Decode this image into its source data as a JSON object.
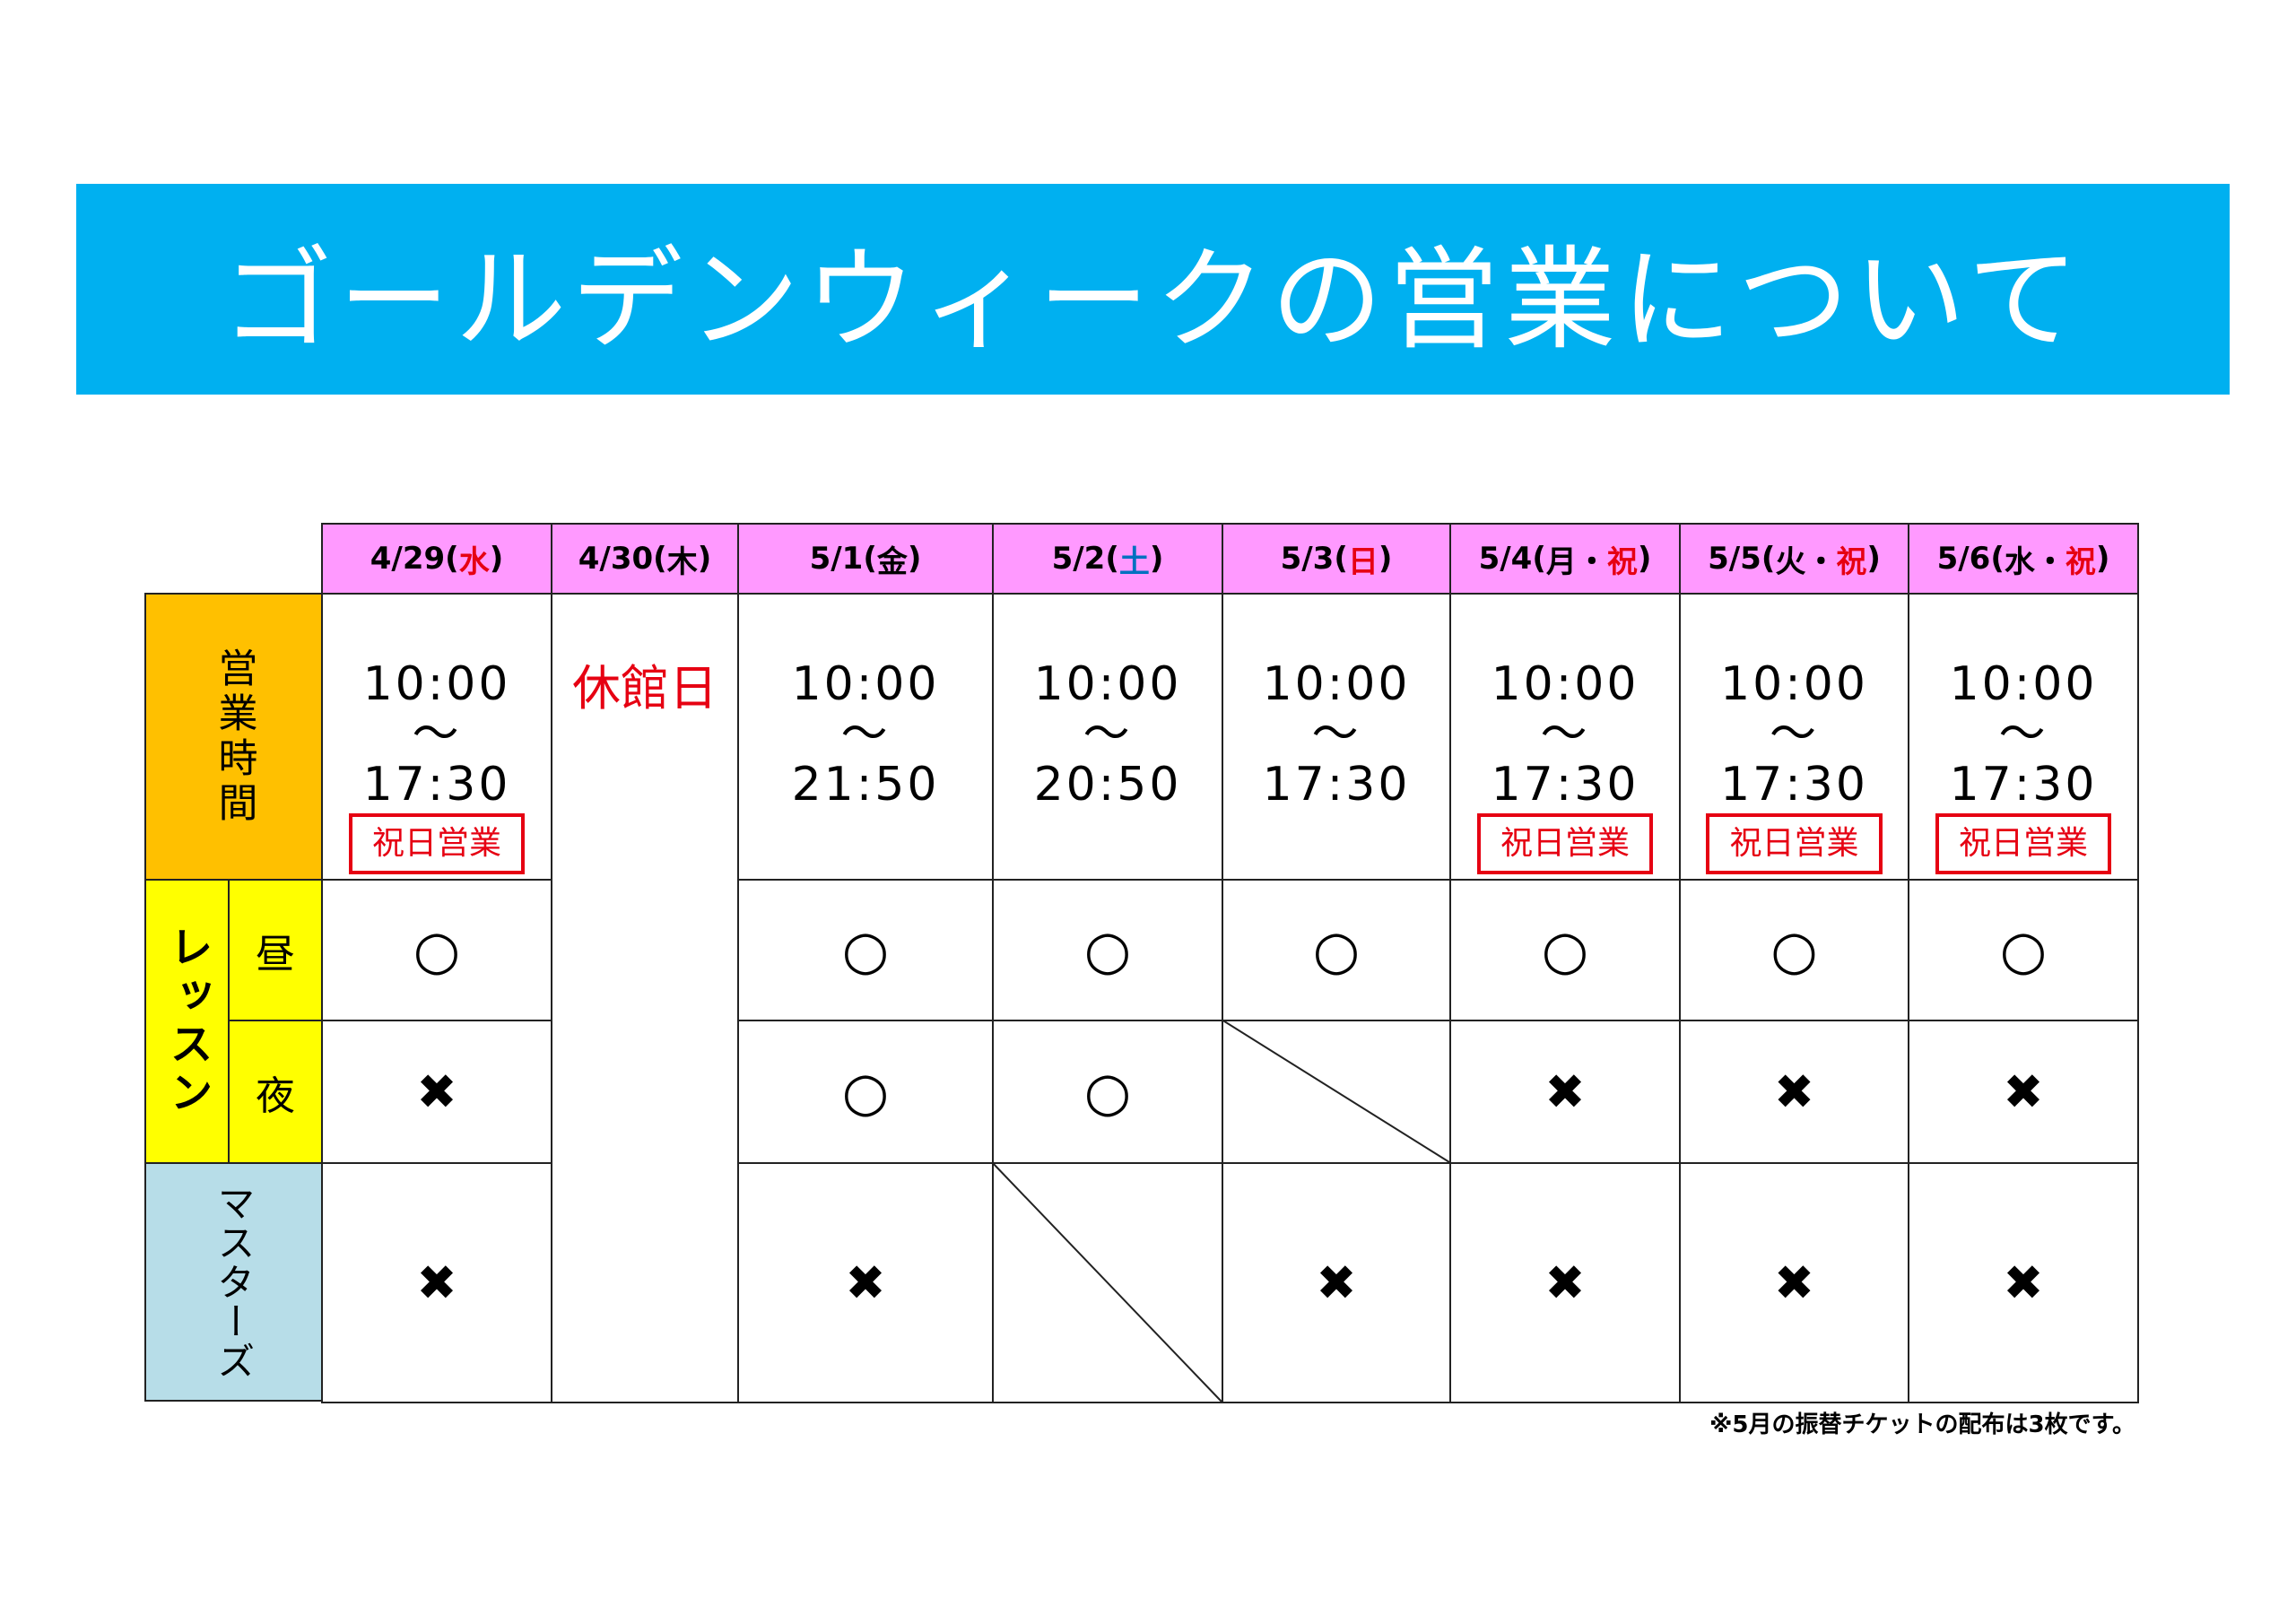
{
  "title": "ゴールデンウィークの営業について",
  "row_labels": {
    "hours": "営業時間",
    "lesson": "レッスン",
    "day": "昼",
    "night": "夜",
    "masters": "マスターズ"
  },
  "closed_label": "休館日",
  "holiday_badge": "祝日営業",
  "columns": [
    {
      "date": "4/29",
      "open": "(",
      "dow": [
        {
          "t": "水",
          "c": "red"
        }
      ],
      "close": ")",
      "hours": [
        "10:00",
        "〜",
        "17:30"
      ],
      "badge": true,
      "day": "○",
      "night": "✖",
      "masters": "✖"
    },
    {
      "date": "4/30",
      "open": "(",
      "dow": [
        {
          "t": "木",
          "c": ""
        }
      ],
      "close": ")",
      "closed": true
    },
    {
      "date": "5/1",
      "open": "(",
      "dow": [
        {
          "t": "金",
          "c": ""
        }
      ],
      "close": ")",
      "hours": [
        "10:00",
        "〜",
        "21:50"
      ],
      "day": "○",
      "night": "○",
      "masters": "✖"
    },
    {
      "date": "5/2",
      "open": "(",
      "dow": [
        {
          "t": "土",
          "c": "blue"
        }
      ],
      "close": ")",
      "hours": [
        "10:00",
        "〜",
        "20:50"
      ],
      "day": "○",
      "night": "○",
      "masters": "none"
    },
    {
      "date": "5/3",
      "open": "(",
      "dow": [
        {
          "t": "日",
          "c": "red"
        }
      ],
      "close": ")",
      "hours": [
        "10:00",
        "〜",
        "17:30"
      ],
      "day": "○",
      "night": "none",
      "masters": "✖"
    },
    {
      "date": "5/4",
      "open": "(",
      "dow": [
        {
          "t": "月・",
          "c": ""
        },
        {
          "t": "祝",
          "c": "red"
        }
      ],
      "close": ")",
      "hours": [
        "10:00",
        "〜",
        "17:30"
      ],
      "badge": true,
      "day": "○",
      "night": "✖",
      "masters": "✖"
    },
    {
      "date": "5/5",
      "open": "(",
      "dow": [
        {
          "t": "火・",
          "c": ""
        },
        {
          "t": "祝",
          "c": "red"
        }
      ],
      "close": ")",
      "hours": [
        "10:00",
        "〜",
        "17:30"
      ],
      "badge": true,
      "day": "○",
      "night": "✖",
      "masters": "✖"
    },
    {
      "date": "5/6",
      "open": "(",
      "dow": [
        {
          "t": "水・",
          "c": ""
        },
        {
          "t": "祝",
          "c": "red"
        }
      ],
      "close": ")",
      "hours": [
        "10:00",
        "〜",
        "17:30"
      ],
      "badge": true,
      "day": "○",
      "night": "✖",
      "masters": "✖"
    }
  ],
  "note": "※5月の振替チケットの配布は3枚です。",
  "colors": {
    "banner": "#00b0f0",
    "header": "#ff99ff",
    "hours_label": "#ffc000",
    "lesson_label": "#ffff00",
    "masters_label": "#b7dde8",
    "accent_red": "#e60012",
    "saturday_blue": "#0070c0"
  }
}
